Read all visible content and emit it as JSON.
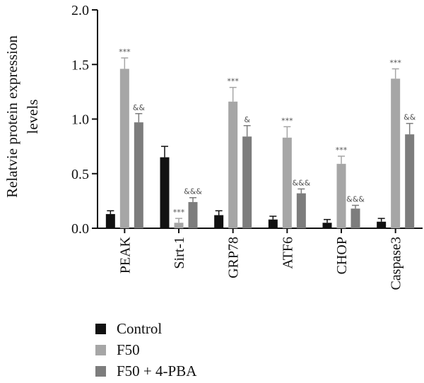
{
  "chart_data": {
    "type": "bar",
    "ylabel": "Relatvie protein expression levels",
    "ylim": [
      0,
      2.0
    ],
    "yticks": [
      "0.0",
      "0.5",
      "1.0",
      "1.5",
      "2.0"
    ],
    "categories": [
      "PEAK",
      "Sirt-1",
      "GRP78",
      "ATF6",
      "CHOP",
      "Caspase3"
    ],
    "series": [
      {
        "name": "Control",
        "color": "#111111",
        "values": [
          0.13,
          0.65,
          0.12,
          0.08,
          0.05,
          0.06
        ],
        "errors": [
          0.03,
          0.1,
          0.04,
          0.03,
          0.03,
          0.03
        ],
        "labels": [
          "",
          "",
          "",
          "",
          "",
          ""
        ]
      },
      {
        "name": "F50",
        "color": "#a6a6a6",
        "values": [
          1.46,
          0.05,
          1.16,
          0.83,
          0.59,
          1.37
        ],
        "errors": [
          0.1,
          0.04,
          0.13,
          0.1,
          0.07,
          0.09
        ],
        "labels": [
          "***",
          "***",
          "***",
          "***",
          "***",
          "***"
        ]
      },
      {
        "name": "F50 + 4-PBA",
        "color": "#7d7d7d",
        "values": [
          0.97,
          0.24,
          0.84,
          0.32,
          0.18,
          0.86
        ],
        "errors": [
          0.08,
          0.04,
          0.1,
          0.04,
          0.03,
          0.1
        ],
        "labels": [
          "&&",
          "&&&",
          "&",
          "&&&",
          "&&&",
          "&&"
        ]
      }
    ],
    "legend_position": "bottom-left",
    "grid": false
  }
}
